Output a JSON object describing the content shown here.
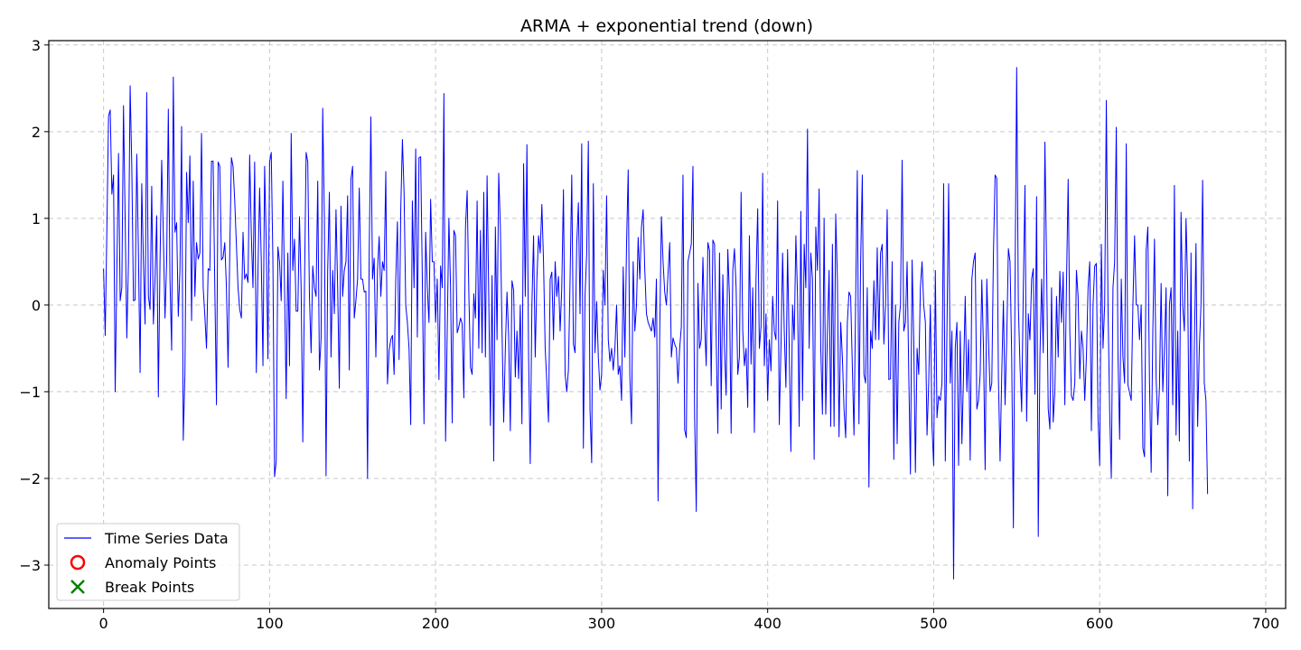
{
  "chart_data": {
    "type": "line",
    "title": "ARMA + exponential trend (down)",
    "xlabel": "",
    "ylabel": "",
    "xlim": [
      -33,
      712
    ],
    "ylim": [
      -3.5,
      3.05
    ],
    "x_ticks": [
      0,
      100,
      200,
      300,
      400,
      500,
      600,
      700
    ],
    "x_tick_labels": [
      "0",
      "100",
      "200",
      "300",
      "400",
      "500",
      "600",
      "700"
    ],
    "y_ticks": [
      -3,
      -2,
      -1,
      0,
      1,
      2,
      3
    ],
    "y_tick_labels": [
      "−3",
      "−2",
      "−1",
      "0",
      "1",
      "2",
      "3"
    ],
    "grid": true,
    "legend_position": "lower-left",
    "legend": [
      {
        "label": "Time Series Data",
        "marker": "line",
        "color": "#0000ff"
      },
      {
        "label": "Anomaly Points",
        "marker": "circle",
        "color": "#ff0000"
      },
      {
        "label": "Break Points",
        "marker": "x",
        "color": "#008000"
      }
    ],
    "series": [
      {
        "name": "Time Series Data",
        "color": "#0000ff",
        "x_start": 0,
        "x_step": 1,
        "values": [
          0.42,
          -0.35,
          0.9,
          2.18,
          2.25,
          1.28,
          1.5,
          -1.0,
          0.4,
          1.75,
          0.05,
          0.2,
          2.3,
          1.0,
          -0.38,
          0.5,
          2.53,
          1.6,
          0.05,
          0.06,
          1.74,
          0.6,
          -0.78,
          1.4,
          0.5,
          -0.22,
          2.45,
          0.1,
          -0.05,
          1.37,
          -0.22,
          0.3,
          1.03,
          -1.06,
          0.5,
          1.67,
          0.8,
          -0.15,
          0.5,
          2.26,
          0.3,
          -0.52,
          2.63,
          0.84,
          0.95,
          -0.13,
          0.4,
          2.06,
          -1.56,
          -0.8,
          1.53,
          0.95,
          1.72,
          -0.18,
          1.43,
          0.1,
          0.72,
          0.53,
          0.6,
          1.98,
          0.2,
          -0.12,
          -0.5,
          0.42,
          0.4,
          1.66,
          1.66,
          0.2,
          -1.15,
          1.65,
          1.6,
          0.52,
          0.55,
          0.72,
          0.2,
          -0.72,
          0.6,
          1.7,
          1.6,
          1.2,
          0.7,
          0.2,
          -0.05,
          -0.15,
          0.84,
          0.3,
          0.36,
          0.26,
          1.73,
          0.8,
          0.2,
          1.65,
          -0.78,
          0.4,
          1.35,
          0.5,
          -0.7,
          1.6,
          0.7,
          -0.62,
          1.65,
          1.76,
          0.5,
          -1.98,
          -1.8,
          0.67,
          0.5,
          0.05,
          1.43,
          0.2,
          -1.08,
          0.6,
          -0.7,
          1.98,
          0.4,
          0.76,
          -0.07,
          -0.07,
          1.02,
          0.2,
          -1.58,
          0.2,
          1.76,
          1.65,
          0.1,
          -0.55,
          0.45,
          0.2,
          0.1,
          1.43,
          -0.75,
          -0.4,
          2.27,
          1.0,
          -1.97,
          0.4,
          1.3,
          -0.6,
          0.4,
          -0.1,
          1.1,
          0.2,
          -0.96,
          1.14,
          0.1,
          0.4,
          0.5,
          1.26,
          -0.75,
          1.45,
          1.6,
          -0.15,
          0.05,
          0.3,
          1.35,
          0.3,
          0.3,
          0.15,
          0.16,
          -2.0,
          0.6,
          2.17,
          0.3,
          0.54,
          -0.6,
          0.4,
          0.79,
          0.1,
          0.5,
          0.4,
          1.54,
          -0.91,
          -0.52,
          -0.4,
          -0.35,
          -0.8,
          0.3,
          0.96,
          -0.63,
          1.1,
          1.91,
          1.3,
          0.0,
          -0.2,
          -0.5,
          -1.38,
          1.2,
          0.2,
          1.8,
          -0.37,
          1.7,
          1.71,
          0.3,
          -1.37,
          0.84,
          0.2,
          -0.2,
          1.22,
          0.5,
          0.5,
          -0.2,
          0.3,
          -0.86,
          0.45,
          0.2,
          2.44,
          -1.57,
          -0.3,
          1.0,
          0.2,
          -1.36,
          0.86,
          0.8,
          -0.32,
          -0.25,
          -0.15,
          -0.22,
          -1.07,
          0.9,
          1.32,
          0.15,
          -0.72,
          -0.8,
          0.13,
          -0.15,
          1.2,
          -0.5,
          0.86,
          -0.55,
          1.3,
          -0.6,
          1.49,
          0.1,
          -1.39,
          0.34,
          -1.8,
          0.9,
          -0.4,
          1.52,
          0.9,
          -0.3,
          -1.35,
          -0.5,
          0.15,
          -0.36,
          -1.45,
          0.28,
          0.17,
          -0.83,
          -0.3,
          -0.85,
          0.0,
          -1.37,
          1.63,
          0.1,
          1.85,
          -0.6,
          -1.83,
          0.0,
          0.8,
          -0.6,
          0.3,
          0.8,
          0.6,
          1.16,
          0.5,
          -0.5,
          -0.9,
          -1.35,
          0.3,
          0.38,
          -0.4,
          0.5,
          0.1,
          0.33,
          -0.3,
          0.2,
          1.33,
          -0.8,
          -1.0,
          -0.75,
          0.3,
          1.5,
          -0.45,
          -0.55,
          0.7,
          1.18,
          -0.1,
          1.86,
          -1.65,
          0.1,
          0.6,
          1.89,
          -1.2,
          -1.82,
          1.4,
          -0.55,
          0.04,
          -0.6,
          -0.98,
          -0.8,
          0.4,
          0.0,
          1.26,
          -0.4,
          -0.65,
          -0.5,
          -0.75,
          -0.5,
          0.0,
          -0.8,
          -0.7,
          -1.1,
          0.44,
          -0.6,
          0.7,
          1.56,
          -0.82,
          -1.37,
          0.5,
          -0.3,
          0.0,
          0.78,
          0.3,
          0.9,
          1.1,
          0.4,
          -0.1,
          -0.2,
          -0.25,
          -0.3,
          -0.15,
          -0.37,
          0.3,
          -2.26,
          -0.3,
          1.02,
          0.5,
          0.15,
          0.0,
          0.36,
          0.72,
          -0.6,
          -0.38,
          -0.45,
          -0.5,
          -0.9,
          -0.5,
          -0.25,
          1.5,
          -1.44,
          -1.53,
          0.5,
          0.6,
          0.7,
          1.6,
          -1.28,
          -2.38,
          0.25,
          -0.5,
          -0.4,
          0.55,
          -0.2,
          -0.7,
          0.72,
          0.63,
          -0.93,
          0.75,
          0.7,
          -0.4,
          -1.48,
          0.6,
          -1.2,
          0.35,
          -0.5,
          -1.04,
          0.64,
          0.1,
          -1.48,
          0.4,
          0.65,
          0.2,
          -0.8,
          -0.6,
          1.3,
          -0.3,
          -0.7,
          -0.5,
          -1.18,
          0.8,
          -0.68,
          0.2,
          -1.47,
          0.3,
          1.11,
          -0.5,
          -0.25,
          1.52,
          -0.7,
          -0.1,
          -1.1,
          -0.4,
          -0.76,
          0.1,
          -0.3,
          -0.4,
          1.2,
          -1.38,
          -0.5,
          0.6,
          -0.3,
          -0.95,
          0.64,
          -0.5,
          -1.69,
          0.0,
          -0.4,
          0.8,
          0.1,
          -1.4,
          1.08,
          -1.1,
          0.7,
          0.2,
          2.03,
          -0.5,
          0.6,
          0.3,
          -1.78,
          0.9,
          0.4,
          1.34,
          -0.5,
          -1.26,
          1.0,
          -1.26,
          -0.3,
          0.4,
          -1.4,
          0.7,
          -1.4,
          1.05,
          0.3,
          -1.52,
          -0.2,
          -0.6,
          -1.2,
          -1.53,
          -0.2,
          0.15,
          0.1,
          -0.7,
          -1.5,
          0.05,
          1.55,
          -1.37,
          0.5,
          1.5,
          -0.8,
          -0.9,
          0.2,
          -2.1,
          -0.3,
          -0.5,
          0.28,
          -0.4,
          0.66,
          -0.4,
          0.6,
          0.7,
          -0.45,
          0.0,
          1.1,
          -0.86,
          -0.85,
          0.5,
          -1.78,
          0.0,
          -1.6,
          -0.2,
          0.0,
          1.67,
          -0.3,
          -0.2,
          0.5,
          -0.8,
          -1.95,
          0.52,
          -0.4,
          -1.93,
          -0.5,
          -0.8,
          0.2,
          0.5,
          0.0,
          -0.2,
          -1.5,
          -0.9,
          0.0,
          -1.4,
          -1.85,
          0.4,
          -1.3,
          -1.05,
          -1.1,
          -0.9,
          1.4,
          -1.8,
          -0.3,
          1.4,
          -0.9,
          -0.3,
          -3.16,
          -0.5,
          -0.2,
          -1.85,
          -0.3,
          -1.6,
          -0.8,
          0.1,
          -1.0,
          -0.4,
          -1.79,
          0.3,
          0.5,
          0.6,
          -1.2,
          -1.1,
          -0.8,
          0.29,
          -0.5,
          -1.9,
          0.3,
          -0.4,
          -1.0,
          -0.9,
          0.6,
          1.5,
          1.46,
          -0.85,
          -1.8,
          -0.8,
          0.05,
          -1.15,
          -0.4,
          0.65,
          0.5,
          -0.6,
          -2.57,
          0.2,
          2.74,
          0.0,
          -0.7,
          -1.23,
          0.2,
          1.38,
          -1.34,
          -0.1,
          -0.4,
          0.3,
          0.42,
          -1.03,
          1.25,
          -2.67,
          -0.6,
          0.3,
          -0.55,
          1.88,
          0.5,
          -1.2,
          -1.43,
          0.2,
          -1.35,
          -1.0,
          0.1,
          -0.6,
          0.39,
          -0.2,
          0.38,
          -1.15,
          0.25,
          1.45,
          -0.3,
          -1.05,
          -1.1,
          -0.9,
          0.4,
          0.1,
          -0.85,
          -0.3,
          -0.5,
          -1.1,
          -0.6,
          0.2,
          0.5,
          -1.45,
          0.0,
          0.45,
          0.48,
          -1.3,
          -1.85,
          0.7,
          -0.5,
          0.0,
          2.36,
          0.0,
          -1.22,
          -2.0,
          0.2,
          0.5,
          2.05,
          -0.55,
          -1.55,
          0.3,
          -0.6,
          -0.9,
          1.86,
          -0.92,
          -1.01,
          -1.1,
          0.0,
          0.8,
          0.0,
          0.0,
          -0.4,
          0.0,
          -1.65,
          -1.75,
          0.63,
          0.9,
          -0.9,
          -1.93,
          -0.3,
          0.76,
          -0.85,
          -1.38,
          -0.95,
          0.25,
          -1.0,
          -0.5,
          0.2,
          -2.2,
          0.0,
          0.2,
          -1.15,
          1.38,
          -1.5,
          -0.3,
          -1.57,
          1.07,
          0.0,
          -0.3,
          1.0,
          0.22,
          -1.8,
          0.6,
          -2.35,
          -0.5,
          0.71,
          -1.4,
          -0.5,
          0.0,
          1.44,
          -0.9,
          -1.1,
          -2.18
        ]
      }
    ],
    "anomaly_points": [],
    "break_points": []
  }
}
